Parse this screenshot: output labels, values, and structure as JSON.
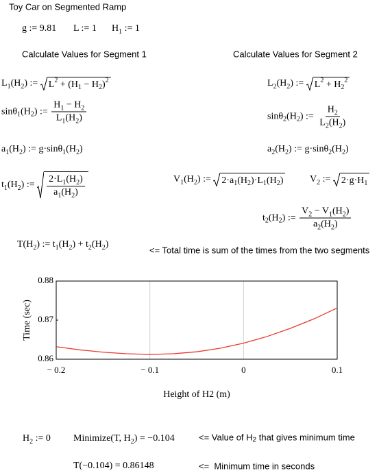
{
  "header": {
    "title": "Toy Car on Segmented Ramp"
  },
  "headings": [
    "Calculate Values for Segment 1",
    "Calculate Values for Segment 2"
  ],
  "formulas": [
    [
      "g := 9.81"
    ],
    [
      "L := 1"
    ],
    [
      "H",
      {
        "sub": "1"
      },
      " := 1"
    ],
    [
      "L",
      {
        "sub": "1"
      },
      "(H",
      {
        "sub": "2"
      },
      ") := ",
      {
        "sqrt": [
          "L",
          {
            "sup": "2"
          },
          " + (H",
          {
            "sub": "1"
          },
          " − H",
          {
            "sub": "2"
          },
          ")",
          {
            "sup": "2"
          }
        ]
      }
    ],
    [
      "sinθ",
      {
        "sub": "1"
      },
      "(H",
      {
        "sub": "2"
      },
      ") := ",
      {
        "frac": [
          [
            "H",
            {
              "sub": "1"
            },
            " − H",
            {
              "sub": "2"
            }
          ],
          [
            "L",
            {
              "sub": "1"
            },
            "(H",
            {
              "sub": "2"
            },
            ")"
          ]
        ]
      }
    ],
    [
      "a",
      {
        "sub": "1"
      },
      "(H",
      {
        "sub": "2"
      },
      ") := g·sinθ",
      {
        "sub": "1"
      },
      "(H",
      {
        "sub": "2"
      },
      ")"
    ],
    [
      "t",
      {
        "sub": "1"
      },
      "(H",
      {
        "sub": "2"
      },
      ") := ",
      {
        "sqrt": [
          {
            "frac": [
              [
                "2·L",
                {
                  "sub": "1"
                },
                "(H",
                {
                  "sub": "2"
                },
                ")"
              ],
              [
                "a",
                {
                  "sub": "1"
                },
                "(H",
                {
                  "sub": "2"
                },
                ")"
              ]
            ]
          }
        ]
      }
    ],
    [
      "L",
      {
        "sub": "2"
      },
      "(H",
      {
        "sub": "2"
      },
      ") := ",
      {
        "sqrt": [
          "L",
          {
            "sup": "2"
          },
          " + H",
          {
            "sub": "2"
          },
          {
            "sup": "2"
          }
        ]
      }
    ],
    [
      "sinθ",
      {
        "sub": "2"
      },
      "(H",
      {
        "sub": "2"
      },
      ") := ",
      {
        "frac": [
          [
            "H",
            {
              "sub": "2"
            }
          ],
          [
            "L",
            {
              "sub": "2"
            },
            "(H",
            {
              "sub": "2"
            },
            ")"
          ]
        ]
      }
    ],
    [
      "a",
      {
        "sub": "2"
      },
      "(H",
      {
        "sub": "2"
      },
      ") := g·sinθ",
      {
        "sub": "2"
      },
      "(H",
      {
        "sub": "2"
      },
      ")"
    ],
    [
      "V",
      {
        "sub": "1"
      },
      "(H",
      {
        "sub": "2"
      },
      ") := ",
      {
        "sqrt": [
          "2·a",
          {
            "sub": "1"
          },
          "(H",
          {
            "sub": "2"
          },
          ")·L",
          {
            "sub": "1"
          },
          "(H",
          {
            "sub": "2"
          },
          ")"
        ]
      }
    ],
    [
      "V",
      {
        "sub": "2"
      },
      " := ",
      {
        "sqrt": [
          "2·g·H",
          {
            "sub": "1"
          }
        ]
      }
    ],
    [
      "t",
      {
        "sub": "2"
      },
      "(H",
      {
        "sub": "2"
      },
      ") := ",
      {
        "frac": [
          [
            "V",
            {
              "sub": "2"
            },
            " − V",
            {
              "sub": "1"
            },
            "(H",
            {
              "sub": "2"
            },
            ")"
          ],
          [
            "a",
            {
              "sub": "2"
            },
            "(H",
            {
              "sub": "2"
            },
            ")"
          ]
        ]
      }
    ],
    [
      "T(H",
      {
        "sub": "2"
      },
      ") := t",
      {
        "sub": "1"
      },
      "(H",
      {
        "sub": "2"
      },
      ") + t",
      {
        "sub": "2"
      },
      "(H",
      {
        "sub": "2"
      },
      ")"
    ],
    [
      "H",
      {
        "sub": "2"
      },
      " := 0"
    ],
    [
      "Minimize(T, H",
      {
        "sub": "2"
      },
      ") = −0.104"
    ],
    [
      "T(−0.104) = 0.86148"
    ]
  ],
  "notes": [
    [
      "<= Total time is sum of the times from the two segments"
    ],
    [
      "<= Value of H",
      {
        "sub": "2"
      },
      " that gives minimum time"
    ],
    [
      "<=  Minimum time in seconds"
    ]
  ],
  "chart_data": {
    "type": "line",
    "x": [
      -0.2,
      -0.175,
      -0.15,
      -0.125,
      -0.1,
      -0.075,
      -0.05,
      -0.025,
      0,
      0.025,
      0.05,
      0.075,
      0.1
    ],
    "series": [
      {
        "color": "#e8392c",
        "values": [
          0.8632,
          0.8624,
          0.8618,
          0.8614,
          0.8612,
          0.8614,
          0.8619,
          0.8628,
          0.8641,
          0.8658,
          0.8679,
          0.8703,
          0.8731
        ]
      }
    ],
    "xlabel": "Height of H2 (m)",
    "ylabel": "Time (sec)",
    "xlim": [
      -0.2,
      0.1
    ],
    "ylim": [
      0.86,
      0.88
    ],
    "xticks": [
      {
        "value": -0.2,
        "label": "− 0.2"
      },
      {
        "value": -0.1,
        "label": "− 0.1"
      },
      0,
      0.1
    ],
    "yticks": [
      0.86,
      0.87,
      0.88
    ],
    "grid": "x"
  }
}
